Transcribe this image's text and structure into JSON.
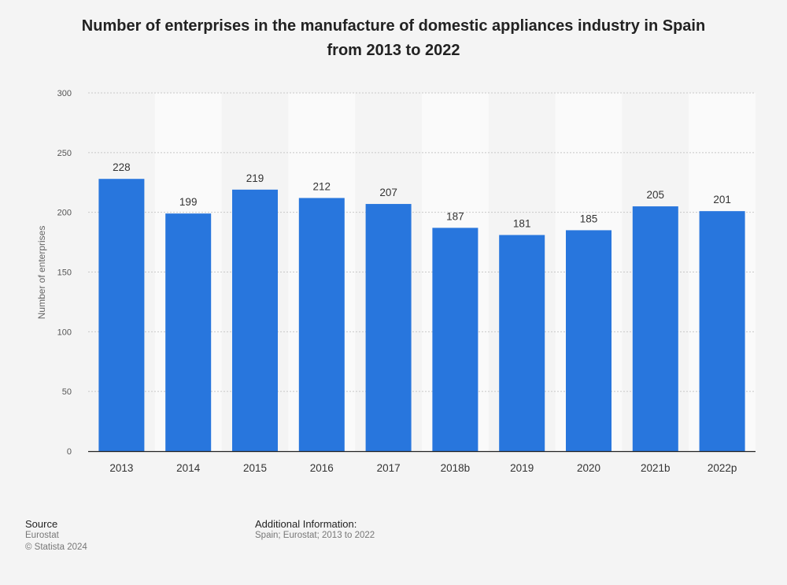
{
  "header": {
    "title_line1": "Number of enterprises in the manufacture of domestic appliances industry in Spain",
    "title_line2": "from 2013 to 2022"
  },
  "chart_data": {
    "type": "bar",
    "title": "Number of enterprises in the manufacture of domestic appliances industry in Spain from 2013 to 2022",
    "categories": [
      "2013",
      "2014",
      "2015",
      "2016",
      "2017",
      "2018b",
      "2019",
      "2020",
      "2021b",
      "2022p"
    ],
    "values": [
      228,
      199,
      219,
      212,
      207,
      187,
      181,
      185,
      205,
      201
    ],
    "xlabel": "",
    "ylabel": "Number of enterprises",
    "ylim": [
      0,
      300
    ],
    "yticks": [
      0,
      50,
      100,
      150,
      200,
      250,
      300
    ],
    "grid": true,
    "bar_color": "#2876dd"
  },
  "footer": {
    "source_heading": "Source",
    "source_name": "Eurostat",
    "copyright": "© Statista 2024",
    "info_heading": "Additional Information:",
    "info_text": "Spain; Eurostat; 2013 to 2022"
  }
}
